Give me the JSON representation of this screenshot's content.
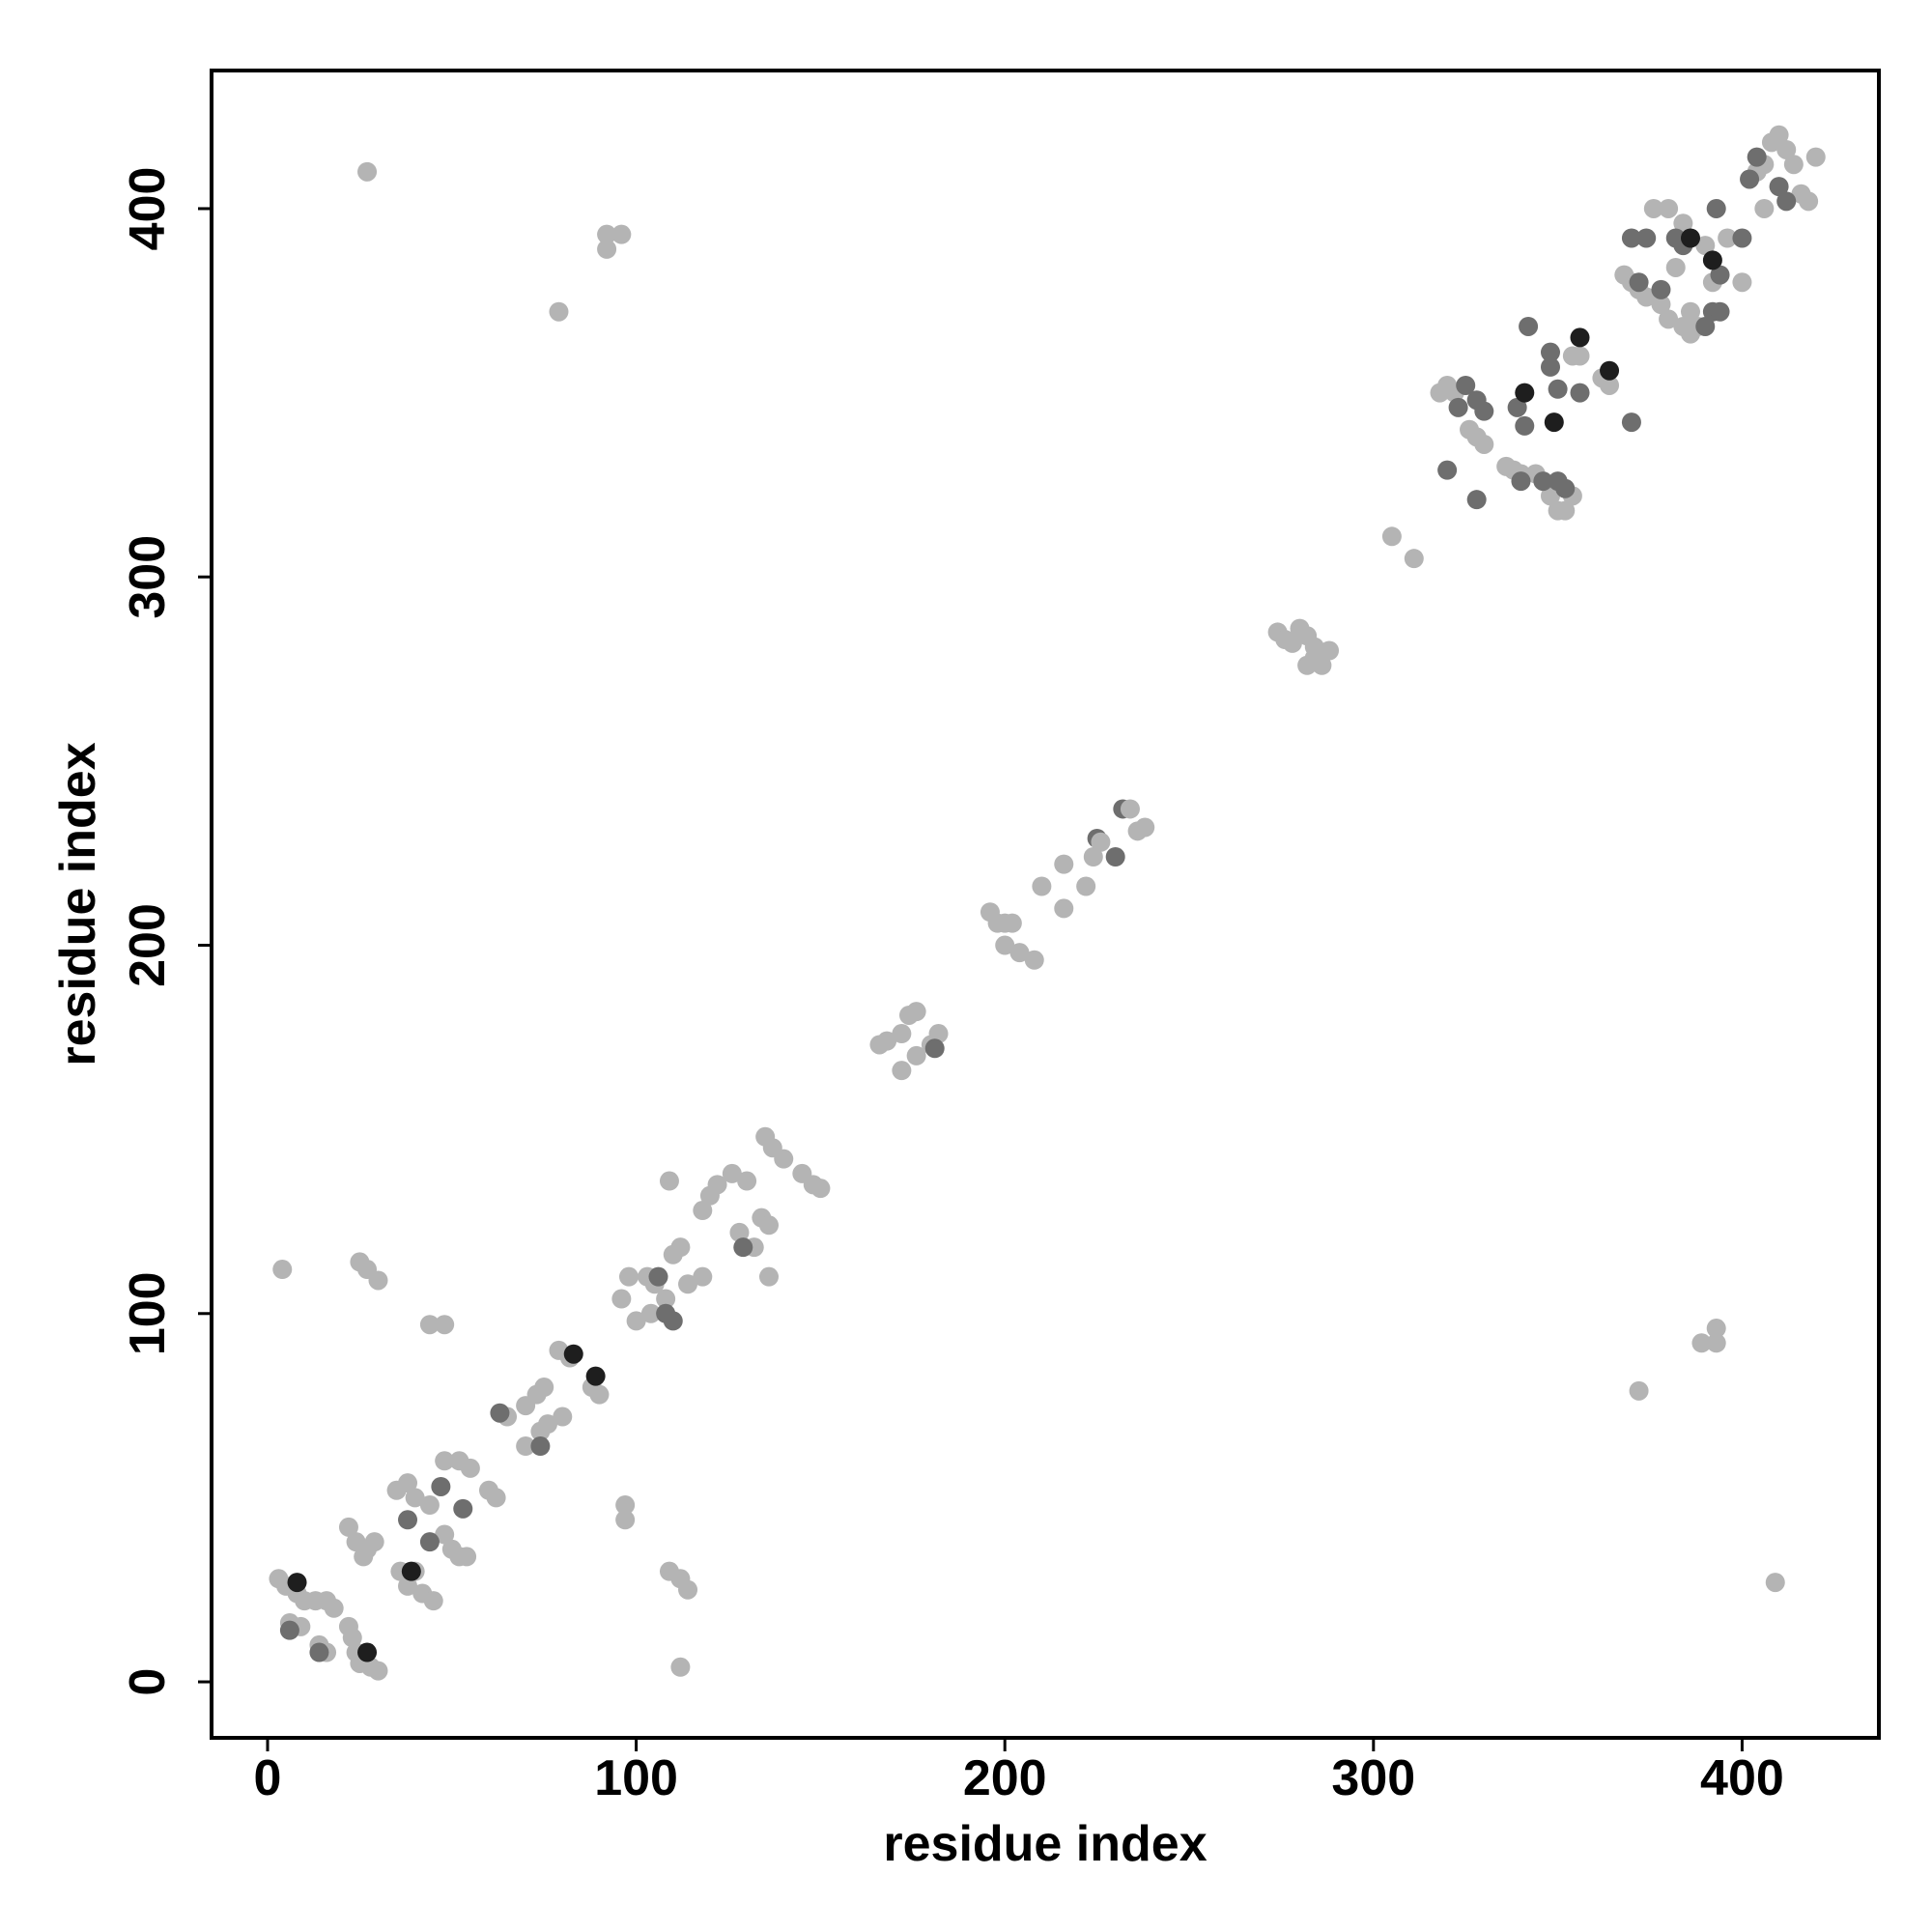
{
  "chart_data": {
    "type": "scatter",
    "x_label": "residue index",
    "y_label": "residue index",
    "xlim": [
      -15.2,
      437.1
    ],
    "ylim": [
      -15.2,
      437.5
    ],
    "xticks": [
      0,
      100,
      200,
      300,
      400
    ],
    "yticks": [
      0,
      100,
      200,
      300,
      400
    ],
    "x": [
      27,
      79,
      92,
      96,
      92,
      4,
      25,
      27,
      30,
      44,
      48,
      97,
      97,
      109,
      112,
      114,
      112,
      305,
      311,
      372,
      389,
      393,
      393,
      409,
      3,
      5,
      8,
      10,
      13,
      16,
      18,
      6,
      9,
      14,
      16,
      22,
      23,
      24,
      25,
      28,
      30,
      22,
      24,
      27,
      29,
      26,
      8,
      27,
      6,
      14,
      35,
      40,
      44,
      38,
      36,
      38,
      42,
      45,
      40,
      48,
      50,
      52,
      54,
      48,
      52,
      55,
      60,
      62,
      65,
      70,
      73,
      75,
      70,
      74,
      76,
      80,
      79,
      82,
      88,
      90,
      38,
      44,
      47,
      53,
      63,
      74,
      83,
      89,
      39,
      96,
      98,
      103,
      105,
      100,
      104,
      108,
      110,
      112,
      114,
      118,
      109,
      108,
      110,
      106,
      118,
      120,
      122,
      126,
      130,
      128,
      132,
      134,
      136,
      135,
      137,
      140,
      145,
      148,
      150,
      136,
      129,
      166,
      168,
      172,
      174,
      176,
      172,
      176,
      180,
      182,
      181,
      196,
      198,
      200,
      202,
      200,
      204,
      208,
      210,
      216,
      216,
      222,
      224,
      225,
      230,
      232,
      234,
      236,
      238,
      226,
      274,
      276,
      278,
      280,
      282,
      284,
      284,
      286,
      282,
      288,
      318,
      320,
      322,
      326,
      328,
      330,
      336,
      338,
      340,
      344,
      348,
      350,
      352,
      354,
      354,
      356,
      362,
      364,
      323,
      325,
      328,
      330,
      320,
      328,
      340,
      346,
      350,
      352,
      348,
      348,
      350,
      356,
      339,
      341,
      370,
      342,
      341,
      349,
      356,
      364,
      368,
      370,
      372,
      374,
      378,
      380,
      384,
      386,
      388,
      376,
      380,
      384,
      390,
      392,
      396,
      400,
      386,
      382,
      404,
      406,
      408,
      410,
      412,
      414,
      416,
      418,
      420,
      406,
      370,
      374,
      372,
      378,
      382,
      384,
      390,
      392,
      394,
      393,
      394,
      400,
      402,
      404,
      410,
      412,
      386,
      392
    ],
    "y": [
      410,
      372,
      393,
      393,
      389,
      112,
      114,
      112,
      109,
      97,
      97,
      48,
      44,
      30,
      28,
      25,
      4,
      311,
      305,
      79,
      92,
      96,
      92,
      27,
      28,
      26,
      24,
      22,
      22,
      22,
      20,
      16,
      15,
      10,
      8,
      15,
      12,
      8,
      5,
      4,
      3,
      42,
      38,
      36,
      38,
      34,
      27,
      8,
      14,
      8,
      52,
      50,
      48,
      54,
      30,
      26,
      24,
      22,
      30,
      40,
      36,
      34,
      34,
      60,
      60,
      58,
      52,
      50,
      72,
      75,
      78,
      80,
      64,
      68,
      70,
      72,
      90,
      88,
      80,
      78,
      44,
      38,
      53,
      47,
      73,
      64,
      89,
      83,
      30,
      104,
      110,
      110,
      108,
      98,
      100,
      104,
      116,
      118,
      108,
      110,
      136,
      100,
      98,
      110,
      128,
      132,
      135,
      138,
      136,
      122,
      118,
      126,
      124,
      148,
      145,
      142,
      138,
      135,
      134,
      110,
      118,
      173,
      174,
      176,
      181,
      182,
      166,
      170,
      173,
      176,
      172,
      209,
      206,
      206,
      206,
      200,
      198,
      196,
      216,
      222,
      210,
      216,
      224,
      229,
      224,
      237,
      237,
      231,
      232,
      228,
      285,
      283,
      282,
      286,
      284,
      281,
      278,
      276,
      276,
      280,
      350,
      352,
      350,
      340,
      338,
      336,
      330,
      329,
      328,
      328,
      322,
      318,
      318,
      322,
      360,
      360,
      354,
      352,
      346,
      352,
      348,
      345,
      329,
      321,
      326,
      326,
      326,
      324,
      361,
      357,
      351,
      350,
      346,
      341,
      342,
      368,
      350,
      342,
      365,
      356,
      382,
      380,
      378,
      376,
      374,
      370,
      368,
      366,
      368,
      400,
      400,
      396,
      390,
      380,
      392,
      380,
      372,
      384,
      410,
      412,
      418,
      420,
      416,
      412,
      404,
      402,
      414,
      400,
      392,
      392,
      380,
      378,
      392,
      390,
      368,
      372,
      372,
      400,
      382,
      392,
      408,
      414,
      406,
      402,
      392,
      386
    ],
    "colors": [
      "#b4b4b4",
      "#b4b4b4",
      "#b4b4b4",
      "#b4b4b4",
      "#b4b4b4",
      "#b4b4b4",
      "#b4b4b4",
      "#b4b4b4",
      "#b4b4b4",
      "#b4b4b4",
      "#b4b4b4",
      "#b4b4b4",
      "#b4b4b4",
      "#b4b4b4",
      "#b4b4b4",
      "#b4b4b4",
      "#b4b4b4",
      "#b4b4b4",
      "#b4b4b4",
      "#b4b4b4",
      "#b4b4b4",
      "#b4b4b4",
      "#b4b4b4",
      "#b4b4b4",
      "#b4b4b4",
      "#b4b4b4",
      "#b4b4b4",
      "#b4b4b4",
      "#b4b4b4",
      "#b4b4b4",
      "#b4b4b4",
      "#b4b4b4",
      "#b4b4b4",
      "#b4b4b4",
      "#b4b4b4",
      "#b4b4b4",
      "#b4b4b4",
      "#b4b4b4",
      "#b4b4b4",
      "#b4b4b4",
      "#b4b4b4",
      "#b4b4b4",
      "#b4b4b4",
      "#b4b4b4",
      "#b4b4b4",
      "#b4b4b4",
      "#1e1e1e",
      "#1e1e1e",
      "#6e6e6e",
      "#6e6e6e",
      "#b4b4b4",
      "#b4b4b4",
      "#b4b4b4",
      "#b4b4b4",
      "#b4b4b4",
      "#b4b4b4",
      "#b4b4b4",
      "#b4b4b4",
      "#b4b4b4",
      "#b4b4b4",
      "#b4b4b4",
      "#b4b4b4",
      "#b4b4b4",
      "#b4b4b4",
      "#b4b4b4",
      "#b4b4b4",
      "#b4b4b4",
      "#b4b4b4",
      "#b4b4b4",
      "#b4b4b4",
      "#b4b4b4",
      "#b4b4b4",
      "#b4b4b4",
      "#b4b4b4",
      "#b4b4b4",
      "#b4b4b4",
      "#b4b4b4",
      "#b4b4b4",
      "#b4b4b4",
      "#b4b4b4",
      "#6e6e6e",
      "#6e6e6e",
      "#6e6e6e",
      "#6e6e6e",
      "#6e6e6e",
      "#6e6e6e",
      "#1e1e1e",
      "#1e1e1e",
      "#1e1e1e",
      "#b4b4b4",
      "#b4b4b4",
      "#b4b4b4",
      "#b4b4b4",
      "#b4b4b4",
      "#b4b4b4",
      "#b4b4b4",
      "#b4b4b4",
      "#b4b4b4",
      "#b4b4b4",
      "#b4b4b4",
      "#b4b4b4",
      "#6e6e6e",
      "#6e6e6e",
      "#6e6e6e",
      "#b4b4b4",
      "#b4b4b4",
      "#b4b4b4",
      "#b4b4b4",
      "#b4b4b4",
      "#b4b4b4",
      "#b4b4b4",
      "#b4b4b4",
      "#b4b4b4",
      "#b4b4b4",
      "#b4b4b4",
      "#b4b4b4",
      "#b4b4b4",
      "#b4b4b4",
      "#b4b4b4",
      "#b4b4b4",
      "#6e6e6e",
      "#b4b4b4",
      "#b4b4b4",
      "#b4b4b4",
      "#b4b4b4",
      "#b4b4b4",
      "#b4b4b4",
      "#b4b4b4",
      "#b4b4b4",
      "#b4b4b4",
      "#6e6e6e",
      "#b4b4b4",
      "#b4b4b4",
      "#b4b4b4",
      "#b4b4b4",
      "#b4b4b4",
      "#b4b4b4",
      "#b4b4b4",
      "#b4b4b4",
      "#b4b4b4",
      "#b4b4b4",
      "#b4b4b4",
      "#b4b4b4",
      "#6e6e6e",
      "#6e6e6e",
      "#6e6e6e",
      "#b4b4b4",
      "#b4b4b4",
      "#b4b4b4",
      "#b4b4b4",
      "#b4b4b4",
      "#b4b4b4",
      "#b4b4b4",
      "#b4b4b4",
      "#b4b4b4",
      "#b4b4b4",
      "#b4b4b4",
      "#b4b4b4",
      "#b4b4b4",
      "#b4b4b4",
      "#b4b4b4",
      "#b4b4b4",
      "#b4b4b4",
      "#b4b4b4",
      "#b4b4b4",
      "#b4b4b4",
      "#b4b4b4",
      "#b4b4b4",
      "#b4b4b4",
      "#b4b4b4",
      "#b4b4b4",
      "#b4b4b4",
      "#b4b4b4",
      "#b4b4b4",
      "#b4b4b4",
      "#b4b4b4",
      "#b4b4b4",
      "#b4b4b4",
      "#6e6e6e",
      "#6e6e6e",
      "#6e6e6e",
      "#6e6e6e",
      "#6e6e6e",
      "#6e6e6e",
      "#6e6e6e",
      "#6e6e6e",
      "#6e6e6e",
      "#6e6e6e",
      "#6e6e6e",
      "#6e6e6e",
      "#6e6e6e",
      "#6e6e6e",
      "#6e6e6e",
      "#6e6e6e",
      "#6e6e6e",
      "#6e6e6e",
      "#1e1e1e",
      "#1e1e1e",
      "#1e1e1e",
      "#1e1e1e",
      "#b4b4b4",
      "#b4b4b4",
      "#b4b4b4",
      "#b4b4b4",
      "#b4b4b4",
      "#b4b4b4",
      "#b4b4b4",
      "#b4b4b4",
      "#b4b4b4",
      "#b4b4b4",
      "#b4b4b4",
      "#b4b4b4",
      "#b4b4b4",
      "#b4b4b4",
      "#b4b4b4",
      "#b4b4b4",
      "#b4b4b4",
      "#b4b4b4",
      "#b4b4b4",
      "#b4b4b4",
      "#b4b4b4",
      "#b4b4b4",
      "#b4b4b4",
      "#b4b4b4",
      "#b4b4b4",
      "#b4b4b4",
      "#b4b4b4",
      "#b4b4b4",
      "#6e6e6e",
      "#6e6e6e",
      "#6e6e6e",
      "#6e6e6e",
      "#6e6e6e",
      "#6e6e6e",
      "#6e6e6e",
      "#6e6e6e",
      "#6e6e6e",
      "#6e6e6e",
      "#6e6e6e",
      "#6e6e6e",
      "#6e6e6e",
      "#6e6e6e",
      "#6e6e6e",
      "#6e6e6e",
      "#1e1e1e",
      "#1e1e1e"
    ]
  }
}
